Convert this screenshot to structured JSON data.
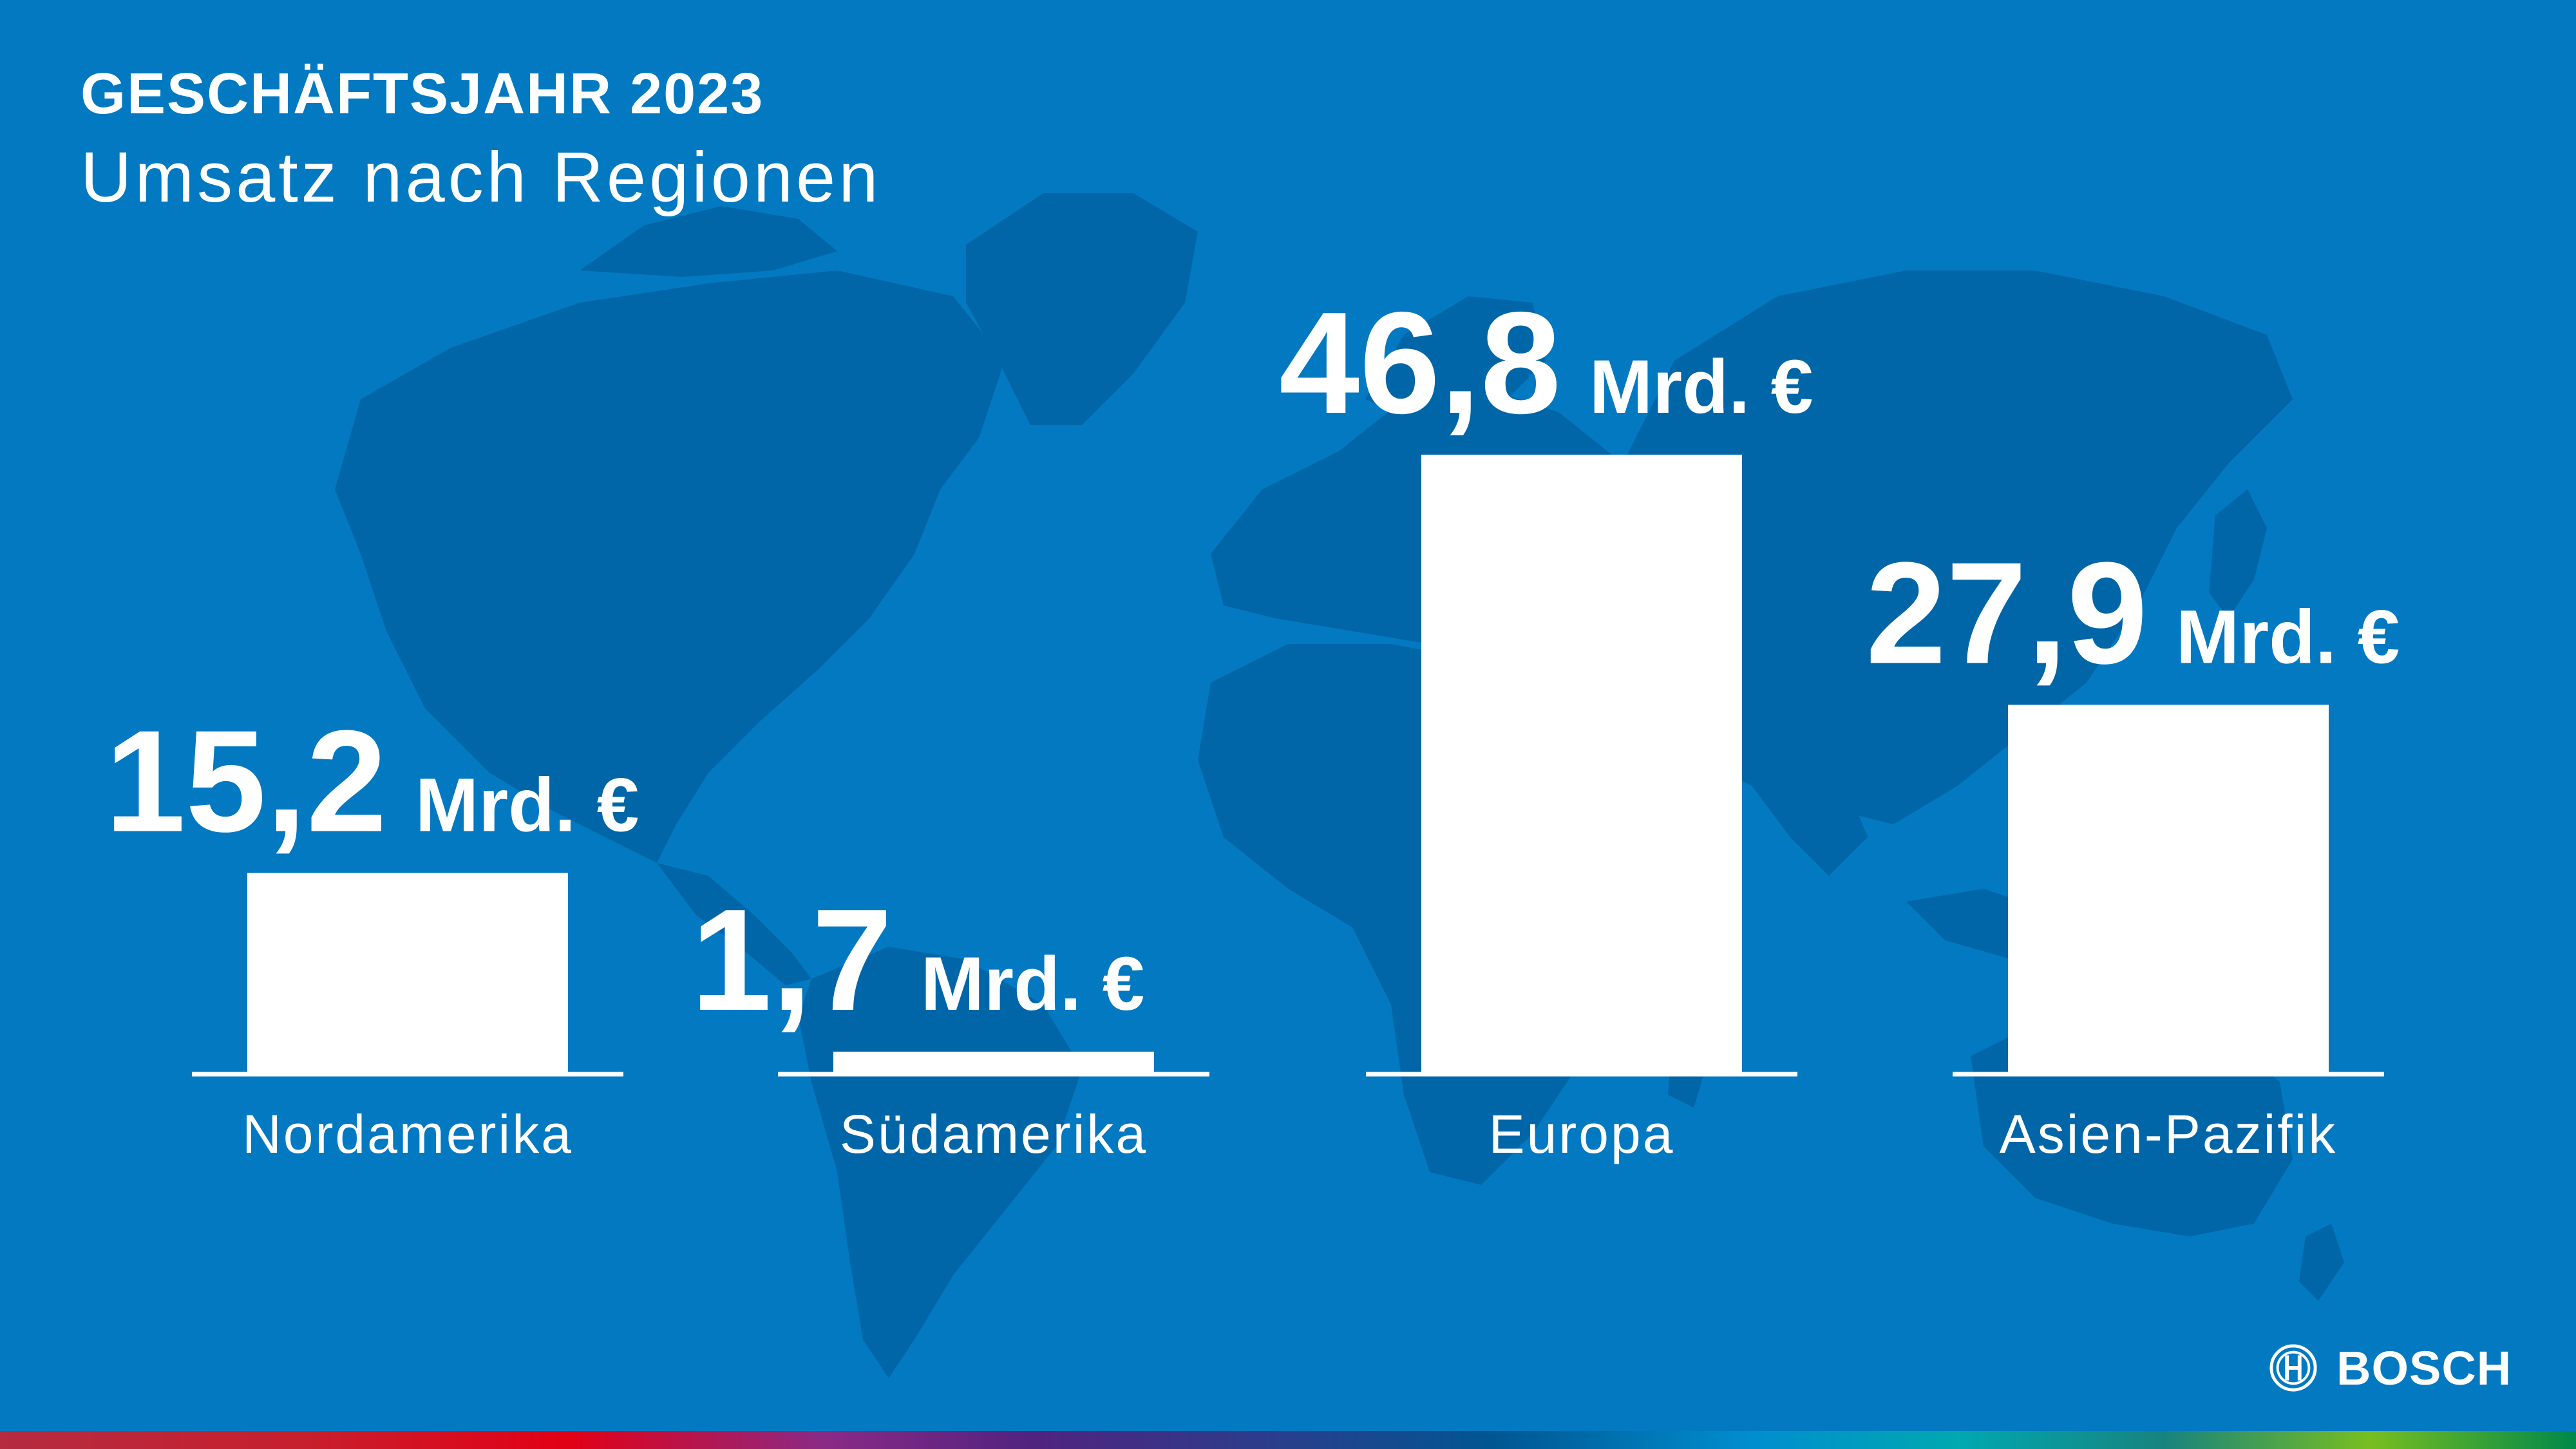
{
  "header": {
    "kicker": "GESCHÄFTSJAHR 2023",
    "headline": "Umsatz nach Regionen"
  },
  "colors": {
    "background": "#0279c1",
    "map_land": "#0166a7",
    "bars": "#ffffff",
    "text": "#ffffff"
  },
  "chart_data": {
    "type": "bar",
    "title": "Umsatz nach Regionen",
    "categories": [
      "Nordamerika",
      "Südamerika",
      "Europa",
      "Asien-Pazifik"
    ],
    "values": [
      15.2,
      1.7,
      46.8,
      27.9
    ],
    "value_labels": [
      "15,2",
      "1,7",
      "46,8",
      "27,9"
    ],
    "unit_label": "Mrd. €",
    "xlabel": "",
    "ylabel": "",
    "ylim": [
      0,
      46.8
    ],
    "grid": false,
    "legend": "none"
  },
  "brand": {
    "logo_text": "BOSCH",
    "logo_icon": "bosch-armature-icon"
  }
}
